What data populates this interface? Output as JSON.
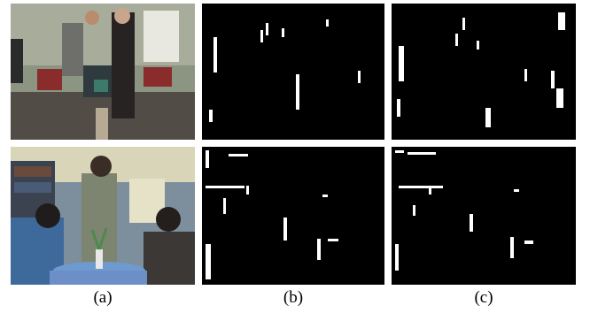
{
  "figure": {
    "captions": [
      "(a)",
      "(b)",
      "(c)"
    ],
    "rows": [
      {
        "scene": "office",
        "original_tone": [
          "#8f9a86",
          "#4b4640"
        ],
        "mask_b": [
          [
            13,
            38,
            4,
            40
          ],
          [
            66,
            30,
            3,
            14
          ],
          [
            72,
            22,
            3,
            14
          ],
          [
            90,
            28,
            3,
            10
          ],
          [
            106,
            80,
            4,
            40
          ],
          [
            140,
            18,
            3,
            8
          ],
          [
            8,
            120,
            4,
            14
          ],
          [
            176,
            76,
            3,
            14
          ],
          [
            218,
            36,
            6,
            20
          ],
          [
            222,
            98,
            6,
            20
          ]
        ],
        "mask_c": [
          [
            8,
            48,
            6,
            40
          ],
          [
            72,
            34,
            3,
            14
          ],
          [
            80,
            16,
            3,
            14
          ],
          [
            96,
            42,
            3,
            10
          ],
          [
            106,
            118,
            6,
            22
          ],
          [
            150,
            74,
            3,
            14
          ],
          [
            180,
            76,
            4,
            20
          ],
          [
            188,
            10,
            8,
            20
          ],
          [
            186,
            96,
            8,
            22
          ],
          [
            6,
            108,
            4,
            20
          ]
        ]
      },
      {
        "scene": "living-room",
        "original_tone": [
          "#7c8fa0",
          "#3a3a3c"
        ],
        "mask_b": [
          [
            30,
            8,
            22,
            3
          ],
          [
            4,
            44,
            44,
            3
          ],
          [
            50,
            44,
            3,
            10
          ],
          [
            24,
            58,
            3,
            18
          ],
          [
            92,
            80,
            4,
            26
          ],
          [
            136,
            54,
            6,
            3
          ],
          [
            130,
            104,
            4,
            24
          ],
          [
            142,
            104,
            12,
            3
          ],
          [
            4,
            110,
            6,
            40
          ],
          [
            4,
            4,
            4,
            20
          ]
        ],
        "mask_c": [
          [
            18,
            6,
            32,
            3
          ],
          [
            8,
            44,
            50,
            3
          ],
          [
            42,
            44,
            3,
            10
          ],
          [
            24,
            66,
            3,
            12
          ],
          [
            88,
            76,
            4,
            20
          ],
          [
            138,
            48,
            6,
            3
          ],
          [
            134,
            102,
            4,
            24
          ],
          [
            150,
            106,
            10,
            4
          ],
          [
            4,
            110,
            4,
            30
          ],
          [
            4,
            4,
            10,
            3
          ]
        ]
      }
    ]
  }
}
